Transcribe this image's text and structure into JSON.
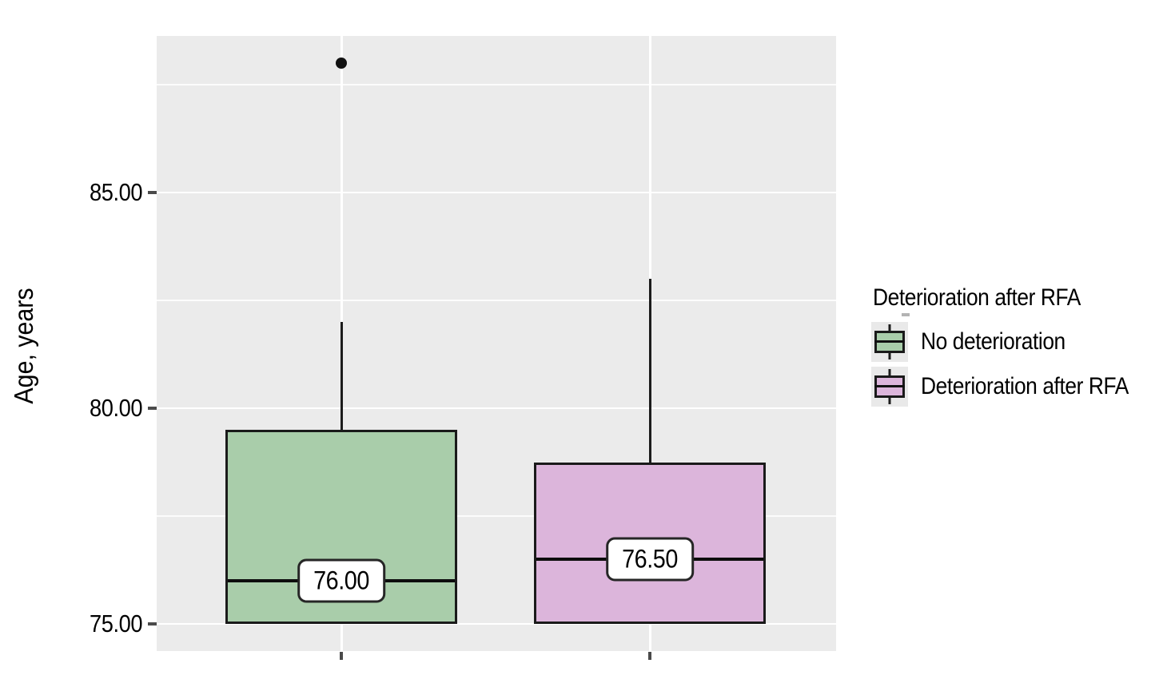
{
  "page": {
    "background": "#ffffff",
    "plot_background": "#ebebeb"
  },
  "colors": {
    "group_green": "#a9cdaa",
    "group_pink": "#dcb5db",
    "box_border": "#1a1a1a",
    "gridline": "#ffffff",
    "tick": "#4a4a4a"
  },
  "chart_data": {
    "type": "boxplot",
    "title": "",
    "xlabel": "",
    "ylabel": "Age, years",
    "ylim": [
      74.35,
      88.7
    ],
    "grid": true,
    "yticks": [
      {
        "value": 85,
        "label": "85.00"
      },
      {
        "value": 80,
        "label": "80.00"
      },
      {
        "value": 75,
        "label": "75.00"
      }
    ],
    "minor_gridlines": [
      87.5,
      82.5,
      77.5
    ],
    "legend": {
      "title": "Deterioration after RFA",
      "position": "right",
      "entries": [
        "No deterioration",
        "Deterioration after RFA"
      ]
    },
    "groups": [
      {
        "name": "No deterioration",
        "color": "#a9cdaa",
        "median_label": "76.00",
        "q1": 75,
        "median": 76,
        "q3": 79.5,
        "whisker_low": 75,
        "whisker_high": 82,
        "outliers": [
          88
        ]
      },
      {
        "name": "Deterioration after RFA",
        "color": "#dcb5db",
        "median_label": "76.50",
        "q1": 75,
        "median": 76.5,
        "q3": 78.75,
        "whisker_low": 75,
        "whisker_high": 83,
        "outliers": []
      }
    ]
  }
}
